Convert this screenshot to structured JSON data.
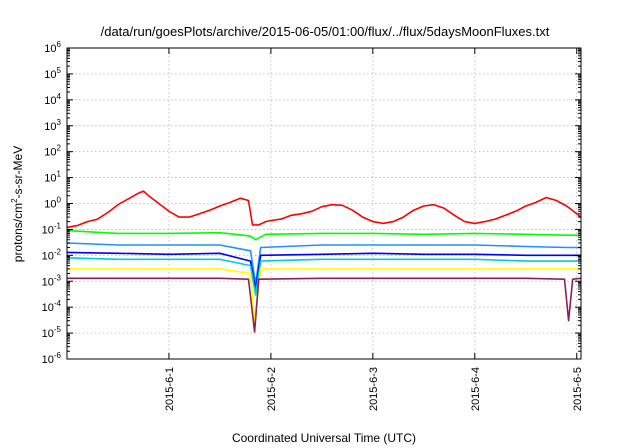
{
  "chart_data": {
    "type": "line",
    "title": "/data/run/goesPlots/archive/2015-06-05/01:00/flux/../flux/5daysMoonFluxes.txt",
    "xlabel": "Coordinated Universal Time (UTC)",
    "ylabel": "protons/cm2-s-sr-MeV",
    "x_ticks": [
      "2015-6-1",
      "2015-6-2",
      "2015-6-3",
      "2015-6-4",
      "2015-6-5"
    ],
    "xlim": [
      "2015-05-31T00:00",
      "2015-06-05T01:00"
    ],
    "y_scale": "log",
    "ylim": [
      1e-06,
      1000000.0
    ],
    "y_ticks": [
      1e-06,
      1e-05,
      0.0001,
      0.001,
      0.01,
      0.1,
      1.0,
      10.0,
      100.0,
      1000.0,
      10000.0,
      100000.0,
      1000000.0
    ],
    "grid": true,
    "legend": "none",
    "series": [
      {
        "color": "#ff0000",
        "values": [
          [
            0,
            0.12
          ],
          [
            0.1,
            0.14
          ],
          [
            0.2,
            0.2
          ],
          [
            0.3,
            0.25
          ],
          [
            0.4,
            0.45
          ],
          [
            0.5,
            0.9
          ],
          [
            0.6,
            1.5
          ],
          [
            0.7,
            2.5
          ],
          [
            0.75,
            3.0
          ],
          [
            0.8,
            2.0
          ],
          [
            0.9,
            1.0
          ],
          [
            1.0,
            0.5
          ],
          [
            1.1,
            0.3
          ],
          [
            1.2,
            0.3
          ],
          [
            1.3,
            0.4
          ],
          [
            1.4,
            0.55
          ],
          [
            1.5,
            0.8
          ],
          [
            1.6,
            1.1
          ],
          [
            1.7,
            1.6
          ],
          [
            1.78,
            1.3
          ],
          [
            1.82,
            0.15
          ],
          [
            1.88,
            0.15
          ],
          [
            1.95,
            0.2
          ],
          [
            2.0,
            0.22
          ],
          [
            2.1,
            0.25
          ],
          [
            2.2,
            0.35
          ],
          [
            2.3,
            0.4
          ],
          [
            2.4,
            0.5
          ],
          [
            2.5,
            0.75
          ],
          [
            2.6,
            0.9
          ],
          [
            2.7,
            0.85
          ],
          [
            2.8,
            0.55
          ],
          [
            2.9,
            0.3
          ],
          [
            3.0,
            0.2
          ],
          [
            3.1,
            0.17
          ],
          [
            3.2,
            0.2
          ],
          [
            3.3,
            0.3
          ],
          [
            3.4,
            0.55
          ],
          [
            3.5,
            0.8
          ],
          [
            3.6,
            0.9
          ],
          [
            3.7,
            0.65
          ],
          [
            3.8,
            0.35
          ],
          [
            3.9,
            0.2
          ],
          [
            4.0,
            0.17
          ],
          [
            4.1,
            0.2
          ],
          [
            4.2,
            0.25
          ],
          [
            4.3,
            0.35
          ],
          [
            4.4,
            0.5
          ],
          [
            4.5,
            0.8
          ],
          [
            4.6,
            1.1
          ],
          [
            4.7,
            1.7
          ],
          [
            4.8,
            1.3
          ],
          [
            4.9,
            0.8
          ],
          [
            5.0,
            0.4
          ],
          [
            5.04,
            0.3
          ]
        ]
      },
      {
        "color": "#00ff00",
        "values": [
          [
            0,
            0.09
          ],
          [
            0.5,
            0.07
          ],
          [
            1.0,
            0.07
          ],
          [
            1.5,
            0.075
          ],
          [
            1.8,
            0.055
          ],
          [
            1.85,
            0.04
          ],
          [
            1.95,
            0.065
          ],
          [
            2.5,
            0.07
          ],
          [
            3.0,
            0.07
          ],
          [
            3.5,
            0.065
          ],
          [
            4.0,
            0.07
          ],
          [
            4.5,
            0.065
          ],
          [
            4.9,
            0.06
          ],
          [
            5.04,
            0.06
          ]
        ]
      },
      {
        "color": "#1e90ff",
        "values": [
          [
            0,
            0.03
          ],
          [
            0.5,
            0.025
          ],
          [
            1.0,
            0.025
          ],
          [
            1.5,
            0.025
          ],
          [
            1.8,
            0.015
          ],
          [
            1.85,
            0.0008
          ],
          [
            1.9,
            0.02
          ],
          [
            2.5,
            0.025
          ],
          [
            3.0,
            0.025
          ],
          [
            3.5,
            0.025
          ],
          [
            4.0,
            0.025
          ],
          [
            4.5,
            0.022
          ],
          [
            4.9,
            0.02
          ],
          [
            5.04,
            0.02
          ]
        ]
      },
      {
        "color": "#0000ff",
        "values": [
          [
            0,
            0.013
          ],
          [
            0.5,
            0.012
          ],
          [
            1.0,
            0.011
          ],
          [
            1.5,
            0.012
          ],
          [
            1.8,
            0.006
          ],
          [
            1.85,
            0.0005
          ],
          [
            1.9,
            0.01
          ],
          [
            2.5,
            0.011
          ],
          [
            3.0,
            0.012
          ],
          [
            3.5,
            0.011
          ],
          [
            4.0,
            0.011
          ],
          [
            4.5,
            0.01
          ],
          [
            4.9,
            0.01
          ],
          [
            5.04,
            0.01
          ]
        ]
      },
      {
        "color": "#00ced1",
        "values": [
          [
            0,
            0.008
          ],
          [
            0.5,
            0.007
          ],
          [
            1.0,
            0.007
          ],
          [
            1.5,
            0.007
          ],
          [
            1.8,
            0.004
          ],
          [
            1.85,
            0.0003
          ],
          [
            1.9,
            0.006
          ],
          [
            2.5,
            0.007
          ],
          [
            3.0,
            0.007
          ],
          [
            3.5,
            0.007
          ],
          [
            4.0,
            0.007
          ],
          [
            4.5,
            0.006
          ],
          [
            4.9,
            0.006
          ],
          [
            5.04,
            0.006
          ]
        ]
      },
      {
        "color": "#ffff00",
        "values": [
          [
            0,
            0.003
          ],
          [
            0.5,
            0.003
          ],
          [
            1.0,
            0.003
          ],
          [
            1.5,
            0.003
          ],
          [
            1.8,
            0.002
          ],
          [
            1.84,
            3e-05
          ],
          [
            1.9,
            0.003
          ],
          [
            2.5,
            0.003
          ],
          [
            3.0,
            0.003
          ],
          [
            3.5,
            0.003
          ],
          [
            4.0,
            0.003
          ],
          [
            4.5,
            0.003
          ],
          [
            4.9,
            0.003
          ],
          [
            5.04,
            0.003
          ]
        ]
      },
      {
        "color": "#8b2252",
        "values": [
          [
            0,
            0.0013
          ],
          [
            0.5,
            0.0013
          ],
          [
            1.0,
            0.0013
          ],
          [
            1.5,
            0.0013
          ],
          [
            1.78,
            0.0012
          ],
          [
            1.84,
            1.1e-05
          ],
          [
            1.88,
            0.0012
          ],
          [
            2.5,
            0.0013
          ],
          [
            3.0,
            0.0013
          ],
          [
            3.5,
            0.0013
          ],
          [
            4.0,
            0.0013
          ],
          [
            4.5,
            0.0013
          ],
          [
            4.88,
            0.0012
          ],
          [
            4.92,
            3e-05
          ],
          [
            4.96,
            0.0012
          ],
          [
            5.04,
            0.0013
          ]
        ]
      }
    ]
  }
}
